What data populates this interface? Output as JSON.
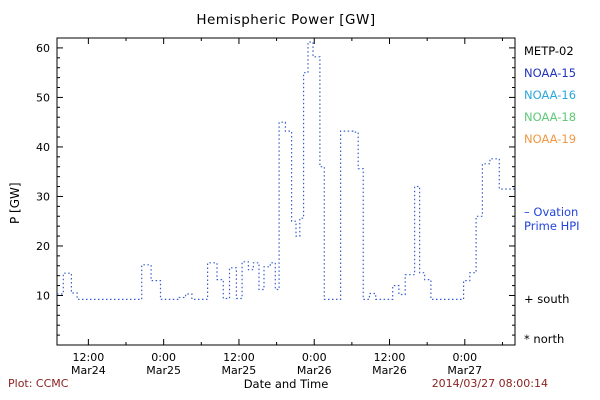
{
  "footer": {
    "left": "Plot: CCMC",
    "right": "2014/03/27 08:00:14"
  },
  "colors": {
    "footer_text": "#8b2222",
    "axis": "#000000"
  },
  "chart_data": {
    "type": "line",
    "title": "Hemispheric Power [GW]",
    "xlabel": "Date and Time",
    "ylabel": "P [GW]",
    "ylim": [
      0,
      62
    ],
    "xlim": [
      0,
      73
    ],
    "x_unit": "hours since 2014-03-24 ~07:00 UT",
    "grid": false,
    "yticks": [
      10,
      20,
      30,
      40,
      50,
      60
    ],
    "xticks": [
      {
        "t": 5,
        "time": "12:00",
        "date": "Mar24"
      },
      {
        "t": 17,
        "time": "0:00",
        "date": "Mar25"
      },
      {
        "t": 29,
        "time": "12:00",
        "date": "Mar25"
      },
      {
        "t": 41,
        "time": "0:00",
        "date": "Mar26"
      },
      {
        "t": 53,
        "time": "12:00",
        "date": "Mar26"
      },
      {
        "t": 65,
        "time": "0:00",
        "date": "Mar27"
      }
    ],
    "xminor": [
      11,
      23,
      35,
      47,
      59,
      71
    ],
    "legend": {
      "satellites": [
        {
          "label": "METP-02",
          "color": "#000000"
        },
        {
          "label": "NOAA-15",
          "color": "#2233bb"
        },
        {
          "label": "NOAA-16",
          "color": "#29a8dd"
        },
        {
          "label": "NOAA-18",
          "color": "#5fc878"
        },
        {
          "label": "NOAA-19",
          "color": "#ee9944"
        }
      ],
      "model_line1": "– Ovation",
      "model_line2": "Prime HPI",
      "model_color": "#2244dd",
      "south": "+ south",
      "north": "* north"
    },
    "series": [
      {
        "name": "Ovation Prime HPI",
        "color": "#3a5fcd",
        "style": "dotted-step",
        "points": [
          [
            0,
            10.3
          ],
          [
            1,
            14.5
          ],
          [
            2.3,
            10.5
          ],
          [
            3.2,
            9.2
          ],
          [
            13.5,
            16.2
          ],
          [
            15,
            13
          ],
          [
            16.5,
            9.2
          ],
          [
            19.5,
            9.6
          ],
          [
            20.5,
            10.3
          ],
          [
            21.5,
            9.2
          ],
          [
            24,
            16.6
          ],
          [
            25.5,
            13.2
          ],
          [
            26.5,
            9.4
          ],
          [
            27.5,
            15.6
          ],
          [
            28.6,
            9.4
          ],
          [
            29.5,
            16.8
          ],
          [
            30.5,
            15.2
          ],
          [
            31.3,
            16.6
          ],
          [
            32.2,
            11.2
          ],
          [
            33,
            15.8
          ],
          [
            34,
            16.6
          ],
          [
            34.8,
            11.2
          ],
          [
            35.4,
            45
          ],
          [
            36.4,
            43.2
          ],
          [
            37.4,
            25
          ],
          [
            38.1,
            22
          ],
          [
            38.7,
            25.6
          ],
          [
            39.3,
            55
          ],
          [
            40,
            61.2
          ],
          [
            40.8,
            58.2
          ],
          [
            41.9,
            36
          ],
          [
            42.6,
            9.2
          ],
          [
            45.2,
            43.2
          ],
          [
            47.2,
            43
          ],
          [
            48,
            35.6
          ],
          [
            48.8,
            9.2
          ],
          [
            49.8,
            10.4
          ],
          [
            50.8,
            9.2
          ],
          [
            53.5,
            12
          ],
          [
            54.5,
            10.2
          ],
          [
            55.5,
            14.2
          ],
          [
            57,
            32
          ],
          [
            57.8,
            14.6
          ],
          [
            58.6,
            13.2
          ],
          [
            59.6,
            9.2
          ],
          [
            63.5,
            9.2
          ],
          [
            64.8,
            13
          ],
          [
            65.8,
            14.6
          ],
          [
            66.8,
            26
          ],
          [
            67.8,
            36.6
          ],
          [
            69,
            37.6
          ],
          [
            70.5,
            31.5
          ]
        ]
      }
    ]
  }
}
